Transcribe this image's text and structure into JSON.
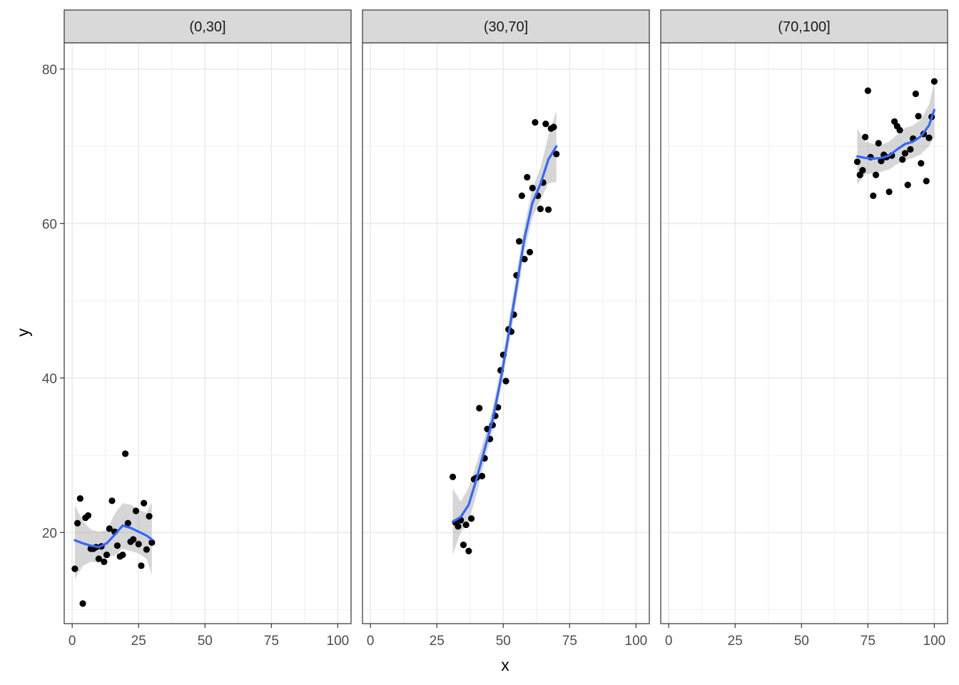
{
  "chart_data": {
    "type": "scatter",
    "facet_by": "x",
    "xlabel": "x",
    "ylabel": "y",
    "xlim": [
      -3,
      105
    ],
    "ylim": [
      8.2,
      83.4
    ],
    "x_ticks": [
      0,
      25,
      50,
      75,
      100
    ],
    "y_ticks": [
      20,
      40,
      60,
      80
    ],
    "grid": true,
    "theme": "bw",
    "colors": {
      "point": "#000000",
      "smooth_line": "#3366FF",
      "ribbon": "#999999",
      "strip_fill": "#D9D9D9",
      "grid": "#EBEBEB",
      "border": "#333333"
    },
    "facets": [
      {
        "label": "(0,30]",
        "points": [
          [
            1,
            15.3
          ],
          [
            2,
            21.2
          ],
          [
            3,
            24.4
          ],
          [
            4,
            10.8
          ],
          [
            5,
            21.9
          ],
          [
            6,
            22.2
          ],
          [
            7,
            17.9
          ],
          [
            8,
            17.9
          ],
          [
            9,
            18.1
          ],
          [
            10,
            16.6
          ],
          [
            11,
            18.2
          ],
          [
            12,
            16.2
          ],
          [
            13,
            17.1
          ],
          [
            14,
            20.5
          ],
          [
            15,
            24.1
          ],
          [
            16,
            20.1
          ],
          [
            17,
            18.3
          ],
          [
            18,
            16.9
          ],
          [
            19,
            17.1
          ],
          [
            20,
            30.2
          ],
          [
            21,
            21.2
          ],
          [
            22,
            18.8
          ],
          [
            23,
            19.1
          ],
          [
            24,
            22.8
          ],
          [
            25,
            18.5
          ],
          [
            26,
            15.7
          ],
          [
            27,
            23.8
          ],
          [
            28,
            17.8
          ],
          [
            29,
            22.1
          ],
          [
            30,
            18.7
          ]
        ],
        "smooth": [
          [
            1,
            19.0
          ],
          [
            4,
            18.6
          ],
          [
            7,
            18.3
          ],
          [
            10,
            18.1
          ],
          [
            13,
            18.6
          ],
          [
            16,
            19.7
          ],
          [
            19,
            20.9
          ],
          [
            22,
            20.6
          ],
          [
            25,
            20.1
          ],
          [
            28,
            19.6
          ],
          [
            30,
            19.1
          ]
        ],
        "ribbon_upper": [
          [
            1,
            23.5
          ],
          [
            4,
            21.5
          ],
          [
            7,
            20.4
          ],
          [
            10,
            20.1
          ],
          [
            13,
            20.3
          ],
          [
            16,
            22.4
          ],
          [
            19,
            23.8
          ],
          [
            22,
            23.6
          ],
          [
            25,
            22.9
          ],
          [
            28,
            22.6
          ],
          [
            30,
            23.9
          ]
        ],
        "ribbon_lower": [
          [
            1,
            14.0
          ],
          [
            4,
            15.7
          ],
          [
            7,
            16.2
          ],
          [
            10,
            16.1
          ],
          [
            13,
            16.8
          ],
          [
            16,
            17.0
          ],
          [
            19,
            17.9
          ],
          [
            22,
            17.6
          ],
          [
            25,
            17.3
          ],
          [
            28,
            16.6
          ],
          [
            30,
            14.5
          ]
        ]
      },
      {
        "label": "(30,70]",
        "points": [
          [
            31,
            27.2
          ],
          [
            32,
            21.3
          ],
          [
            33,
            20.8
          ],
          [
            34,
            21.6
          ],
          [
            35,
            18.4
          ],
          [
            36,
            21.0
          ],
          [
            37,
            17.6
          ],
          [
            38,
            21.8
          ],
          [
            39,
            26.9
          ],
          [
            40,
            27.1
          ],
          [
            41,
            36.1
          ],
          [
            42,
            27.3
          ],
          [
            43,
            29.6
          ],
          [
            44,
            33.4
          ],
          [
            45,
            32.1
          ],
          [
            46,
            33.9
          ],
          [
            47,
            35.1
          ],
          [
            48,
            36.2
          ],
          [
            49,
            41.0
          ],
          [
            50,
            43.0
          ],
          [
            51,
            39.6
          ],
          [
            52,
            46.3
          ],
          [
            53,
            46.0
          ],
          [
            54,
            48.2
          ],
          [
            55,
            53.3
          ],
          [
            56,
            57.7
          ],
          [
            57,
            63.6
          ],
          [
            58,
            55.4
          ],
          [
            59,
            66.0
          ],
          [
            60,
            56.3
          ],
          [
            61,
            64.6
          ],
          [
            62,
            73.1
          ],
          [
            63,
            63.6
          ],
          [
            64,
            61.9
          ],
          [
            65,
            65.3
          ],
          [
            66,
            72.9
          ],
          [
            67,
            61.8
          ],
          [
            68,
            72.3
          ],
          [
            69,
            72.5
          ],
          [
            70,
            69.0
          ]
        ],
        "smooth": [
          [
            31,
            21.4
          ],
          [
            34,
            22.0
          ],
          [
            37,
            23.6
          ],
          [
            40,
            27.0
          ],
          [
            43,
            30.8
          ],
          [
            46,
            34.6
          ],
          [
            49,
            39.7
          ],
          [
            52,
            45.6
          ],
          [
            55,
            51.8
          ],
          [
            58,
            58.1
          ],
          [
            61,
            62.7
          ],
          [
            64,
            65.1
          ],
          [
            67,
            68.3
          ],
          [
            70,
            70.0
          ]
        ],
        "ribbon_upper": [
          [
            31,
            25.7
          ],
          [
            34,
            24.0
          ],
          [
            37,
            25.8
          ],
          [
            40,
            29.0
          ],
          [
            43,
            32.3
          ],
          [
            46,
            36.1
          ],
          [
            49,
            41.0
          ],
          [
            52,
            47.2
          ],
          [
            55,
            53.5
          ],
          [
            58,
            59.7
          ],
          [
            61,
            64.6
          ],
          [
            64,
            67.2
          ],
          [
            67,
            71.4
          ],
          [
            70,
            74.6
          ]
        ],
        "ribbon_lower": [
          [
            31,
            17.1
          ],
          [
            34,
            20.0
          ],
          [
            37,
            21.4
          ],
          [
            40,
            25.0
          ],
          [
            43,
            29.3
          ],
          [
            46,
            33.1
          ],
          [
            49,
            38.4
          ],
          [
            52,
            44.0
          ],
          [
            55,
            50.1
          ],
          [
            58,
            56.5
          ],
          [
            61,
            60.8
          ],
          [
            64,
            63.0
          ],
          [
            67,
            65.2
          ],
          [
            70,
            65.4
          ]
        ]
      },
      {
        "label": "(70,100]",
        "points": [
          [
            71,
            68.0
          ],
          [
            72,
            66.3
          ],
          [
            73,
            66.9
          ],
          [
            74,
            71.2
          ],
          [
            75,
            77.2
          ],
          [
            76,
            68.6
          ],
          [
            77,
            63.6
          ],
          [
            78,
            66.3
          ],
          [
            79,
            70.4
          ],
          [
            80,
            68.1
          ],
          [
            81,
            68.9
          ],
          [
            82,
            68.6
          ],
          [
            83,
            64.1
          ],
          [
            84,
            68.8
          ],
          [
            85,
            73.2
          ],
          [
            86,
            72.6
          ],
          [
            87,
            72.1
          ],
          [
            88,
            68.3
          ],
          [
            89,
            69.1
          ],
          [
            90,
            65.0
          ],
          [
            91,
            69.6
          ],
          [
            92,
            71.0
          ],
          [
            93,
            76.8
          ],
          [
            94,
            73.9
          ],
          [
            95,
            67.8
          ],
          [
            96,
            71.6
          ],
          [
            97,
            65.5
          ],
          [
            98,
            71.1
          ],
          [
            99,
            73.8
          ],
          [
            100,
            78.4
          ]
        ],
        "smooth": [
          [
            71,
            68.7
          ],
          [
            74,
            68.5
          ],
          [
            77,
            68.4
          ],
          [
            80,
            68.5
          ],
          [
            83,
            68.8
          ],
          [
            86,
            69.6
          ],
          [
            89,
            70.3
          ],
          [
            92,
            70.6
          ],
          [
            95,
            71.3
          ],
          [
            98,
            72.7
          ],
          [
            100,
            74.7
          ]
        ],
        "ribbon_upper": [
          [
            71,
            72.3
          ],
          [
            74,
            70.6
          ],
          [
            77,
            70.3
          ],
          [
            80,
            70.2
          ],
          [
            83,
            70.6
          ],
          [
            86,
            71.5
          ],
          [
            89,
            72.4
          ],
          [
            92,
            72.7
          ],
          [
            95,
            73.5
          ],
          [
            98,
            75.4
          ],
          [
            100,
            78.2
          ]
        ],
        "ribbon_lower": [
          [
            71,
            65.0
          ],
          [
            74,
            66.4
          ],
          [
            77,
            66.5
          ],
          [
            80,
            66.7
          ],
          [
            83,
            67.0
          ],
          [
            86,
            67.7
          ],
          [
            89,
            68.2
          ],
          [
            92,
            68.5
          ],
          [
            95,
            69.0
          ],
          [
            98,
            70.0
          ],
          [
            100,
            71.2
          ]
        ]
      }
    ]
  }
}
